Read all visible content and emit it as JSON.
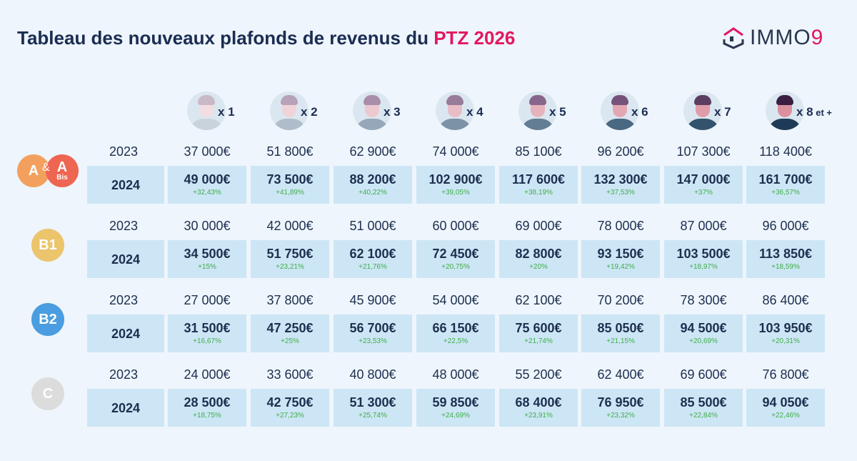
{
  "title": {
    "main": "Tableau des nouveaux plafonds de revenus du ",
    "highlight": "PTZ 2026"
  },
  "logo": {
    "text": "IMMO",
    "nine": "9"
  },
  "households": [
    "x 1",
    "x 2",
    "x 3",
    "x 4",
    "x 5",
    "x 6",
    "x 7",
    "x 8"
  ],
  "households_suffix": " et +",
  "avatar_colors": {
    "hair": [
      "#c9b9c8",
      "#b8a2b9",
      "#a88ea9",
      "#987a9a",
      "#88658b",
      "#76527a",
      "#5c3d62",
      "#3a1f43"
    ],
    "body": [
      "#c8d3dc",
      "#aebdc9",
      "#95a7b8",
      "#7c92a6",
      "#637d94",
      "#4a6882",
      "#33526e",
      "#1e3a57"
    ],
    "face": [
      "#f2dde1",
      "#efd3d8",
      "#ecc8cf",
      "#e9bdc5",
      "#e6b2bc",
      "#e3a7b2",
      "#e09ca9",
      "#dc8f9e"
    ]
  },
  "years": {
    "prev": "2023",
    "curr": "2024"
  },
  "zones": [
    {
      "label": "A",
      "label2": "A",
      "amp": "&",
      "bis": "Bis",
      "color": "#f3a05e",
      "color2": "#ee6552",
      "y2023": [
        "37 000€",
        "51 800€",
        "62 900€",
        "74 000€",
        "85 100€",
        "96 200€",
        "107 300€",
        "118 400€"
      ],
      "y2024": [
        "49 000€",
        "73 500€",
        "88 200€",
        "102 900€",
        "117 600€",
        "132 300€",
        "147 000€",
        "161 700€"
      ],
      "pct": [
        "+32,43%",
        "+41,89%",
        "+40,22%",
        "+39,05%",
        "+38,19%",
        "+37,53%",
        "+37%",
        "+36,57%"
      ]
    },
    {
      "label": "B1",
      "color": "#ebc46c",
      "y2023": [
        "30 000€",
        "42 000€",
        "51 000€",
        "60 000€",
        "69 000€",
        "78 000€",
        "87 000€",
        "96 000€"
      ],
      "y2024": [
        "34 500€",
        "51 750€",
        "62 100€",
        "72 450€",
        "82 800€",
        "93 150€",
        "103 500€",
        "113 850€"
      ],
      "pct": [
        "+15%",
        "+23,21%",
        "+21,76%",
        "+20,75%",
        "+20%",
        "+19,42%",
        "+18,97%",
        "+18,59%"
      ]
    },
    {
      "label": "B2",
      "color": "#4a9de0",
      "y2023": [
        "27 000€",
        "37 800€",
        "45 900€",
        "54 000€",
        "62 100€",
        "70 200€",
        "78 300€",
        "86 400€"
      ],
      "y2024": [
        "31 500€",
        "47 250€",
        "56 700€",
        "66 150€",
        "75 600€",
        "85 050€",
        "94 500€",
        "103 950€"
      ],
      "pct": [
        "+16,67%",
        "+25%",
        "+23,53%",
        "+22,5%",
        "+21,74%",
        "+21,15%",
        "+20,69%",
        "+20,31%"
      ]
    },
    {
      "label": "C",
      "color": "#dcdcdc",
      "y2023": [
        "24 000€",
        "33 600€",
        "40 800€",
        "48 000€",
        "55 200€",
        "62 400€",
        "69 600€",
        "76 800€"
      ],
      "y2024": [
        "28 500€",
        "42 750€",
        "51 300€",
        "59 850€",
        "68 400€",
        "76 950€",
        "85 500€",
        "94 050€"
      ],
      "pct": [
        "+18,75%",
        "+27,23%",
        "+25,74%",
        "+24,69%",
        "+23,91%",
        "+23,32%",
        "+22,84%",
        "+22,46%"
      ]
    }
  ]
}
